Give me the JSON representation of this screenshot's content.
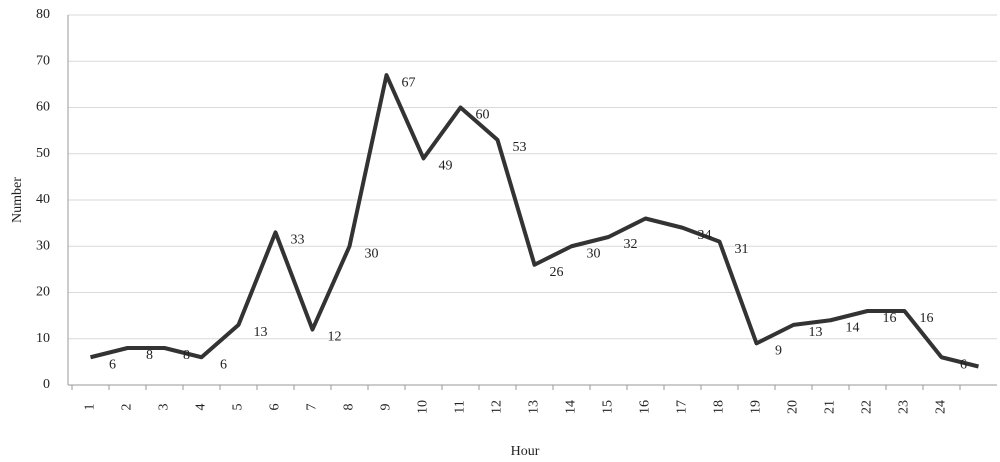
{
  "chart_data": {
    "type": "line",
    "x_label": "Hour",
    "y_label": "Number",
    "categories": [
      "1",
      "2",
      "3",
      "4",
      "5",
      "6",
      "7",
      "8",
      "9",
      "10",
      "11",
      "12",
      "13",
      "14",
      "15",
      "16",
      "17",
      "18",
      "19",
      "20",
      "21",
      "22",
      "23",
      "24",
      null
    ],
    "series": [
      {
        "color": "#333333",
        "values": [
          6,
          8,
          8,
          6,
          13,
          33,
          12,
          30,
          67,
          49,
          60,
          53,
          26,
          30,
          32,
          36,
          34,
          31,
          9,
          13,
          14,
          16,
          16,
          6,
          4
        ],
        "value_labels": [
          "6",
          "8",
          "8",
          "6",
          "13",
          "33",
          "12",
          "30",
          "67",
          "49",
          "60",
          "53",
          "26",
          "30",
          "32",
          null,
          "34",
          "31",
          "9",
          "13",
          "14",
          "16",
          "16",
          "6",
          null
        ]
      }
    ],
    "ylim": [
      0,
      80
    ],
    "yticks": [
      0,
      10,
      20,
      30,
      40,
      50,
      60,
      70,
      80
    ],
    "grid": true
  }
}
